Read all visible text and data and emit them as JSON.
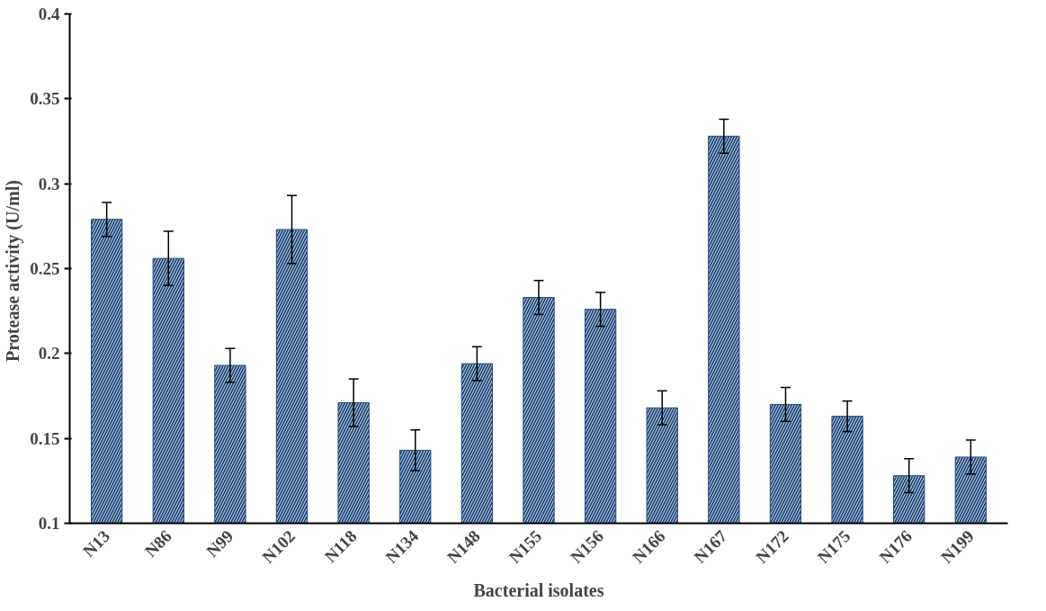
{
  "chart_data": {
    "type": "bar",
    "xlabel": "Bacterial isolates",
    "ylabel": "Protease activity  (U/ml)",
    "categories": [
      "N13",
      "N86",
      "N99",
      "N102",
      "N118",
      "N134",
      "N148",
      "N155",
      "N156",
      "N166",
      "N167",
      "N172",
      "N175",
      "N176",
      "N199"
    ],
    "values": [
      0.279,
      0.256,
      0.193,
      0.273,
      0.171,
      0.143,
      0.194,
      0.233,
      0.226,
      0.168,
      0.328,
      0.17,
      0.163,
      0.128,
      0.139
    ],
    "errors": [
      0.01,
      0.016,
      0.01,
      0.02,
      0.014,
      0.012,
      0.01,
      0.01,
      0.01,
      0.01,
      0.01,
      0.01,
      0.009,
      0.01,
      0.01
    ],
    "color": "#1f497d",
    "ylim": [
      0.1,
      0.4
    ],
    "yticks": [
      0.1,
      0.15,
      0.2,
      0.25,
      0.3,
      0.35,
      0.4
    ],
    "grid": false
  }
}
